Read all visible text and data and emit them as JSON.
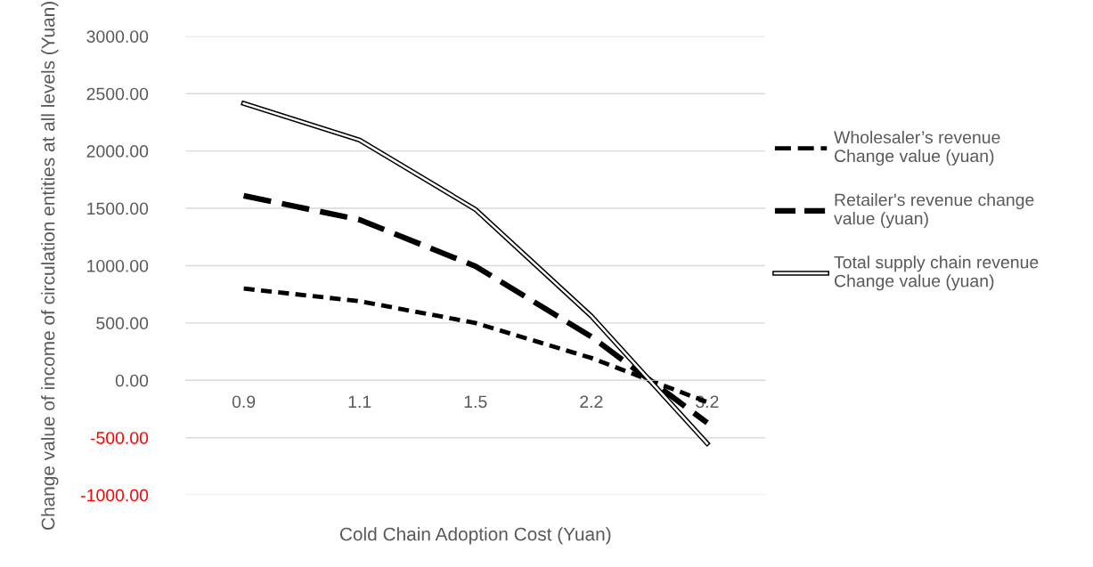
{
  "chart_data": {
    "type": "line",
    "xlabel": "Cold Chain Adoption Cost (Yuan)",
    "ylabel": "Change value of income of circulation entities at all levels (Yuan)",
    "categories": [
      "0.9",
      "1.1",
      "1.5",
      "2.2",
      "3.2"
    ],
    "series": [
      {
        "name": "Wholesaler’s revenue\nChange value (yuan)",
        "color": "#000000",
        "line_style": "dotted",
        "values": [
          800,
          690,
          500,
          195,
          -190
        ]
      },
      {
        "name": "Retailer's revenue change\nvalue (yuan)",
        "color": "#000000",
        "line_style": "dashed",
        "values": [
          1610,
          1400,
          995,
          380,
          -370
        ]
      },
      {
        "name": "Total supply chain revenue\nChange value (yuan)",
        "color": "#000000",
        "line_style": "solid",
        "values": [
          2415,
          2095,
          1490,
          560,
          -550
        ]
      }
    ],
    "ylim": [
      -1000,
      3000
    ],
    "yticks": [
      {
        "value": -1000,
        "label": "-1000.00"
      },
      {
        "value": -500,
        "label": "-500.00"
      },
      {
        "value": 0,
        "label": "0.00"
      },
      {
        "value": 500,
        "label": "500.00"
      },
      {
        "value": 1000,
        "label": "1000.00"
      },
      {
        "value": 1500,
        "label": "1500.00"
      },
      {
        "value": 2000,
        "label": "2000.00"
      },
      {
        "value": 2500,
        "label": "2500.00"
      },
      {
        "value": 3000,
        "label": "3000.00"
      }
    ],
    "grid": "y",
    "legend": "right",
    "marker": "none"
  }
}
